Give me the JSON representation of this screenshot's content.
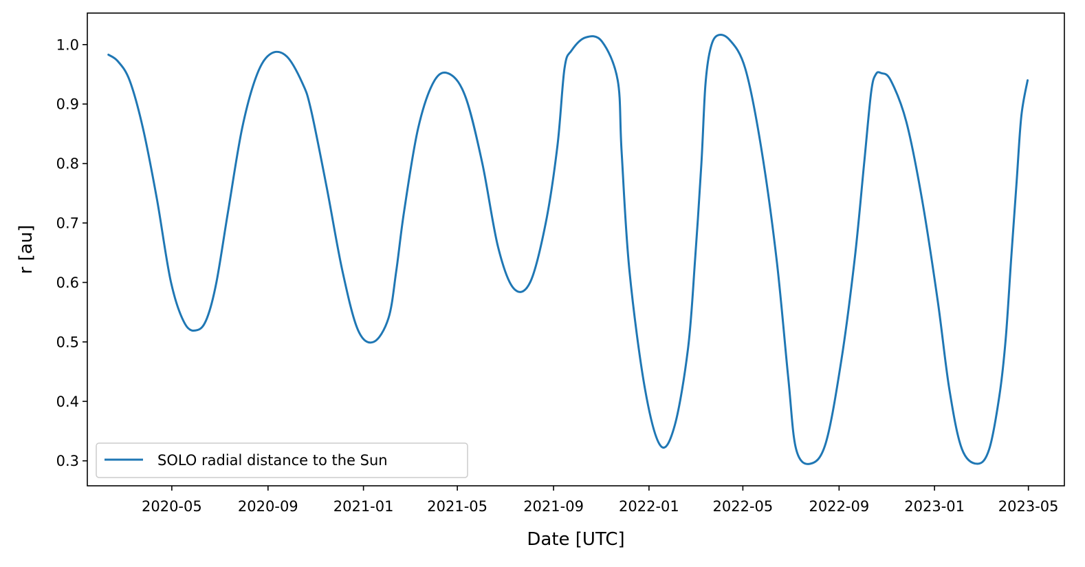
{
  "chart_data": {
    "type": "line",
    "title": "",
    "xlabel": "Date [UTC]",
    "ylabel": "r [au]",
    "x_axis_type": "date",
    "xlim": [
      "2020-01-14",
      "2023-06-16"
    ],
    "ylim": [
      0.258,
      1.053
    ],
    "x_ticks": [
      "2020-05",
      "2020-09",
      "2021-01",
      "2021-05",
      "2021-09",
      "2022-01",
      "2022-05",
      "2022-09",
      "2023-01",
      "2023-05"
    ],
    "y_ticks": [
      "0.3",
      "0.4",
      "0.5",
      "0.6",
      "0.7",
      "0.8",
      "0.9",
      "1.0"
    ],
    "grid": false,
    "legend": {
      "placement": "lower-left"
    },
    "colors": {
      "series": "#1f77b4",
      "axes": "#000000",
      "background": "#ffffff"
    },
    "series": [
      {
        "name": "SOLO radial distance to the Sun",
        "x": [
          "2020-02-10",
          "2020-02-22",
          "2020-03-08",
          "2020-03-25",
          "2020-04-12",
          "2020-04-30",
          "2020-05-18",
          "2020-06-03",
          "2020-06-15",
          "2020-06-27",
          "2020-07-12",
          "2020-07-30",
          "2020-08-18",
          "2020-09-05",
          "2020-09-25",
          "2020-10-15",
          "2020-10-26",
          "2020-11-15",
          "2020-12-05",
          "2020-12-25",
          "2021-01-14",
          "2021-02-02",
          "2021-02-12",
          "2021-02-22",
          "2021-03-12",
          "2021-04-02",
          "2021-04-22",
          "2021-05-12",
          "2021-06-02",
          "2021-06-22",
          "2021-07-12",
          "2021-08-02",
          "2021-08-22",
          "2021-09-06",
          "2021-09-15",
          "2021-09-24",
          "2021-10-12",
          "2021-11-02",
          "2021-11-22",
          "2021-11-27",
          "2021-12-07",
          "2021-12-27",
          "2022-01-16",
          "2022-02-03",
          "2022-02-20",
          "2022-03-01",
          "2022-03-09",
          "2022-03-14",
          "2022-03-20",
          "2022-03-29",
          "2022-04-14",
          "2022-05-04",
          "2022-05-24",
          "2022-06-13",
          "2022-06-28",
          "2022-07-08",
          "2022-07-26",
          "2022-08-15",
          "2022-09-04",
          "2022-09-21",
          "2022-10-03",
          "2022-10-12",
          "2022-10-18",
          "2022-10-25",
          "2022-11-06",
          "2022-11-26",
          "2022-12-16",
          "2023-01-05",
          "2023-01-20",
          "2023-02-05",
          "2023-02-25",
          "2023-03-12",
          "2023-03-25",
          "2023-04-02",
          "2023-04-09",
          "2023-04-16",
          "2023-04-22",
          "2023-04-30"
        ],
        "values": [
          0.983,
          0.972,
          0.94,
          0.86,
          0.74,
          0.6,
          0.53,
          0.52,
          0.54,
          0.6,
          0.72,
          0.86,
          0.95,
          0.985,
          0.98,
          0.935,
          0.89,
          0.76,
          0.62,
          0.52,
          0.5,
          0.54,
          0.62,
          0.72,
          0.86,
          0.94,
          0.95,
          0.91,
          0.8,
          0.66,
          0.59,
          0.6,
          0.7,
          0.83,
          0.96,
          0.99,
          1.012,
          1.005,
          0.94,
          0.82,
          0.62,
          0.42,
          0.325,
          0.36,
          0.49,
          0.64,
          0.8,
          0.93,
          0.99,
          1.015,
          1.008,
          0.96,
          0.83,
          0.64,
          0.44,
          0.32,
          0.295,
          0.33,
          0.47,
          0.64,
          0.8,
          0.92,
          0.95,
          0.952,
          0.94,
          0.87,
          0.74,
          0.57,
          0.42,
          0.32,
          0.295,
          0.32,
          0.41,
          0.505,
          0.64,
          0.77,
          0.88,
          0.94
        ]
      }
    ]
  }
}
